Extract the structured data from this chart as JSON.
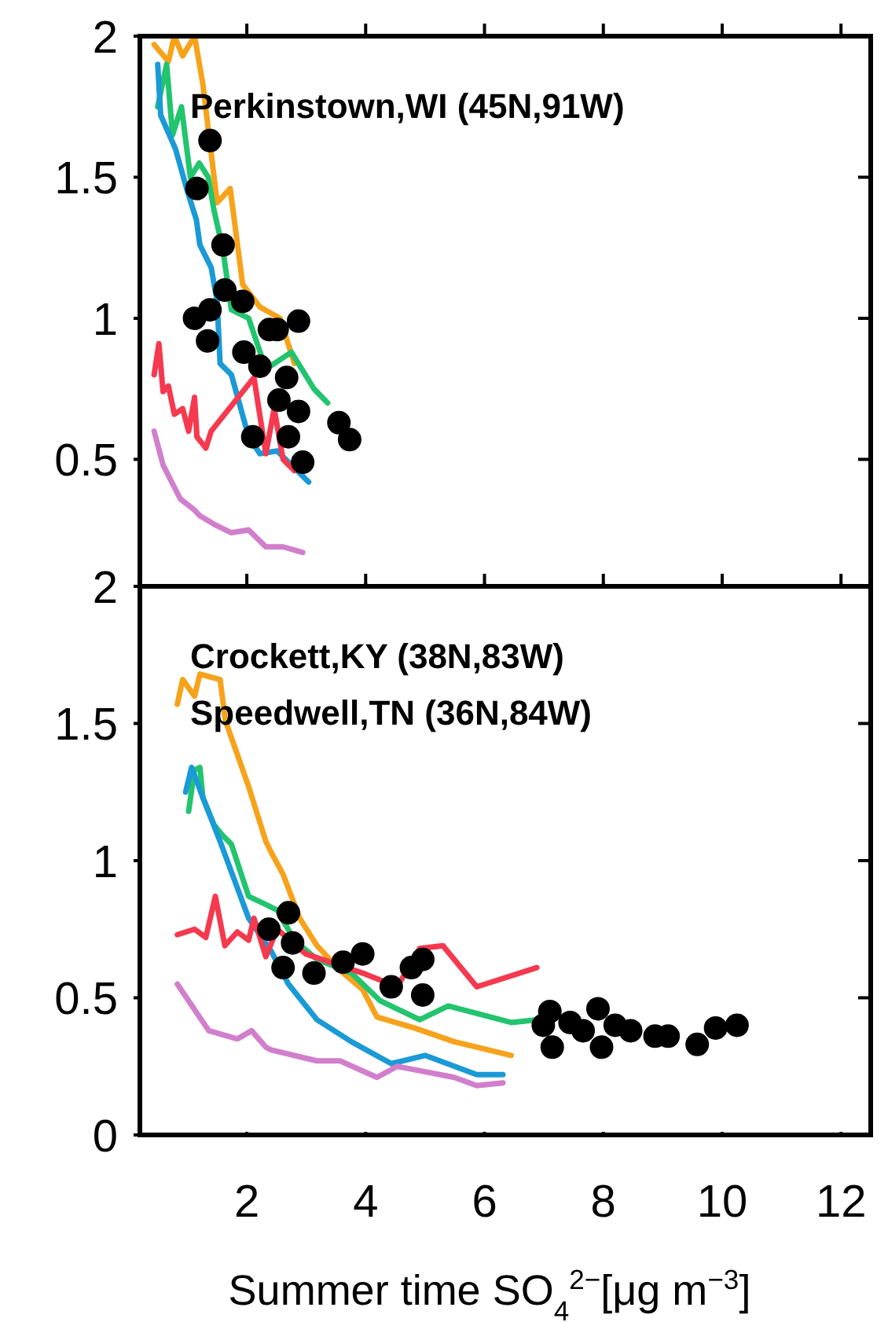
{
  "chart_data": [
    {
      "type": "line",
      "annotations": [
        "Perkinstown,WI (45N,91W)"
      ],
      "xlim": [
        0.2,
        12.5
      ],
      "ylim": [
        0.05,
        2
      ],
      "xticks": [
        2,
        4,
        6,
        8,
        10,
        12
      ],
      "yticks": [
        0.5,
        1,
        1.5,
        2
      ],
      "tick_labels": "y",
      "marker": "none",
      "line_style": "solid",
      "series": [
        {
          "color": "#f7a21b",
          "x": [
            0.44,
            0.68,
            0.78,
            0.92,
            1.12,
            1.26,
            1.5,
            1.72,
            1.93,
            2.22,
            2.56,
            2.8
          ],
          "values": [
            1.97,
            1.91,
            2.0,
            1.93,
            2.0,
            1.83,
            1.41,
            1.46,
            1.12,
            1.04,
            1.0,
            0.84
          ]
        },
        {
          "color": "#22c46e",
          "x": [
            0.5,
            0.65,
            0.75,
            0.9,
            1.05,
            1.2,
            1.35,
            1.45,
            1.6,
            1.74,
            2.03,
            2.32,
            2.75,
            3.13,
            3.36
          ],
          "values": [
            1.75,
            1.9,
            1.65,
            1.75,
            1.5,
            1.55,
            1.5,
            1.38,
            1.24,
            1.03,
            1.0,
            0.82,
            0.88,
            0.75,
            0.7
          ]
        },
        {
          "color": "#1a9ad6",
          "x": [
            0.5,
            0.55,
            0.8,
            1.0,
            1.15,
            1.21,
            1.4,
            1.5,
            1.55,
            1.74,
            2.03,
            2.22,
            2.51,
            3.04
          ],
          "values": [
            1.9,
            1.72,
            1.6,
            1.45,
            1.35,
            1.26,
            1.18,
            1.06,
            0.84,
            0.8,
            0.58,
            0.52,
            0.53,
            0.42
          ]
        },
        {
          "color": "#f5394f",
          "x": [
            0.44,
            0.52,
            0.59,
            0.68,
            0.78,
            0.92,
            1.02,
            1.12,
            1.16,
            1.31,
            1.4,
            2.12,
            2.32,
            2.46,
            2.61,
            2.8
          ],
          "values": [
            0.8,
            0.91,
            0.74,
            0.76,
            0.66,
            0.68,
            0.6,
            0.72,
            0.58,
            0.54,
            0.6,
            0.79,
            0.52,
            0.68,
            0.5,
            0.46
          ]
        },
        {
          "color": "#d17fcc",
          "x": [
            0.44,
            0.59,
            0.88,
            1.12,
            1.21,
            1.45,
            1.74,
            2.03,
            2.32,
            2.61,
            2.94
          ],
          "values": [
            0.6,
            0.48,
            0.36,
            0.32,
            0.3,
            0.27,
            0.24,
            0.25,
            0.19,
            0.19,
            0.17
          ]
        },
        {
          "type": "scatter",
          "marker": "circle",
          "color": "#000000",
          "x": [
            1.38,
            1.16,
            1.6,
            1.63,
            1.93,
            1.12,
            1.38,
            1.34,
            2.38,
            2.51,
            2.87,
            1.95,
            2.22,
            2.67,
            2.54,
            2.87,
            2.1,
            2.7,
            2.94,
            3.55,
            3.73
          ],
          "values": [
            1.63,
            1.46,
            1.26,
            1.1,
            1.06,
            1.0,
            1.03,
            0.92,
            0.96,
            0.96,
            0.99,
            0.88,
            0.83,
            0.79,
            0.71,
            0.67,
            0.58,
            0.58,
            0.49,
            0.63,
            0.57
          ]
        }
      ]
    },
    {
      "type": "line",
      "annotations": [
        "Crockett,KY (38N,83W)",
        "Speedwell,TN (36N,84W)"
      ],
      "xlabel": "Summer time  SO$_{4}$$^{2−}$[μg m$^{−3}$]",
      "xlim": [
        0.2,
        12.5
      ],
      "ylim": [
        0,
        2
      ],
      "xticks": [
        2,
        4,
        6,
        8,
        10,
        12
      ],
      "yticks": [
        0,
        0.5,
        1,
        1.5,
        2
      ],
      "marker": "none",
      "line_style": "solid",
      "series": [
        {
          "color": "#f7a21b",
          "x": [
            0.83,
            0.92,
            1.12,
            1.21,
            1.55,
            1.64,
            2.03,
            2.32,
            2.41,
            2.61,
            2.89,
            3.18,
            3.57,
            3.95,
            4.19,
            4.82,
            5.49,
            6.45
          ],
          "values": [
            1.57,
            1.66,
            1.6,
            1.68,
            1.66,
            1.51,
            1.27,
            1.07,
            1.03,
            0.95,
            0.79,
            0.69,
            0.6,
            0.53,
            0.43,
            0.39,
            0.34,
            0.29
          ]
        },
        {
          "color": "#22c46e",
          "x": [
            1.02,
            1.12,
            1.21,
            1.26,
            1.45,
            1.6,
            1.74,
            2.03,
            2.32,
            2.51,
            2.8,
            3.18,
            3.76,
            4.24,
            4.91,
            5.39,
            6.45,
            6.88
          ],
          "values": [
            1.18,
            1.33,
            1.34,
            1.23,
            1.13,
            1.09,
            1.06,
            0.87,
            0.84,
            0.82,
            0.71,
            0.64,
            0.59,
            0.49,
            0.42,
            0.47,
            0.41,
            0.42
          ]
        },
        {
          "color": "#1a9ad6",
          "x": [
            0.97,
            1.07,
            1.26,
            1.55,
            2.03,
            2.41,
            2.7,
            3.18,
            3.76,
            4.43,
            5.0,
            5.87,
            6.31
          ],
          "values": [
            1.25,
            1.34,
            1.23,
            1.07,
            0.79,
            0.67,
            0.55,
            0.42,
            0.34,
            0.26,
            0.29,
            0.22,
            0.22
          ]
        },
        {
          "color": "#f5394f",
          "x": [
            0.83,
            1.12,
            1.31,
            1.47,
            1.63,
            1.84,
            2.03,
            2.12,
            2.32,
            2.51,
            2.99,
            3.95,
            4.53,
            4.91,
            5.3,
            5.87,
            6.88
          ],
          "values": [
            0.73,
            0.75,
            0.72,
            0.87,
            0.69,
            0.74,
            0.71,
            0.79,
            0.65,
            0.75,
            0.66,
            0.59,
            0.54,
            0.68,
            0.69,
            0.54,
            0.61
          ]
        },
        {
          "color": "#d17fcc",
          "x": [
            0.83,
            1.36,
            1.84,
            2.08,
            2.32,
            2.41,
            3.18,
            3.57,
            4.19,
            4.53,
            5.49,
            5.87,
            6.31
          ],
          "values": [
            0.55,
            0.38,
            0.35,
            0.38,
            0.32,
            0.31,
            0.27,
            0.27,
            0.21,
            0.25,
            0.21,
            0.18,
            0.19
          ]
        },
        {
          "type": "scatter",
          "marker": "circle",
          "color": "#000000",
          "x": [
            2.37,
            2.7,
            2.77,
            2.61,
            3.13,
            3.62,
            3.95,
            4.77,
            4.96,
            4.43,
            4.96,
            6.99,
            7.1,
            7.14,
            7.44,
            7.66,
            7.91,
            7.97,
            8.2,
            8.46,
            8.87,
            9.09,
            9.58,
            9.89,
            10.25
          ],
          "values": [
            0.75,
            0.81,
            0.7,
            0.61,
            0.59,
            0.63,
            0.66,
            0.61,
            0.64,
            0.54,
            0.51,
            0.4,
            0.45,
            0.32,
            0.41,
            0.38,
            0.46,
            0.32,
            0.4,
            0.38,
            0.36,
            0.36,
            0.33,
            0.39,
            0.4
          ]
        }
      ]
    }
  ]
}
